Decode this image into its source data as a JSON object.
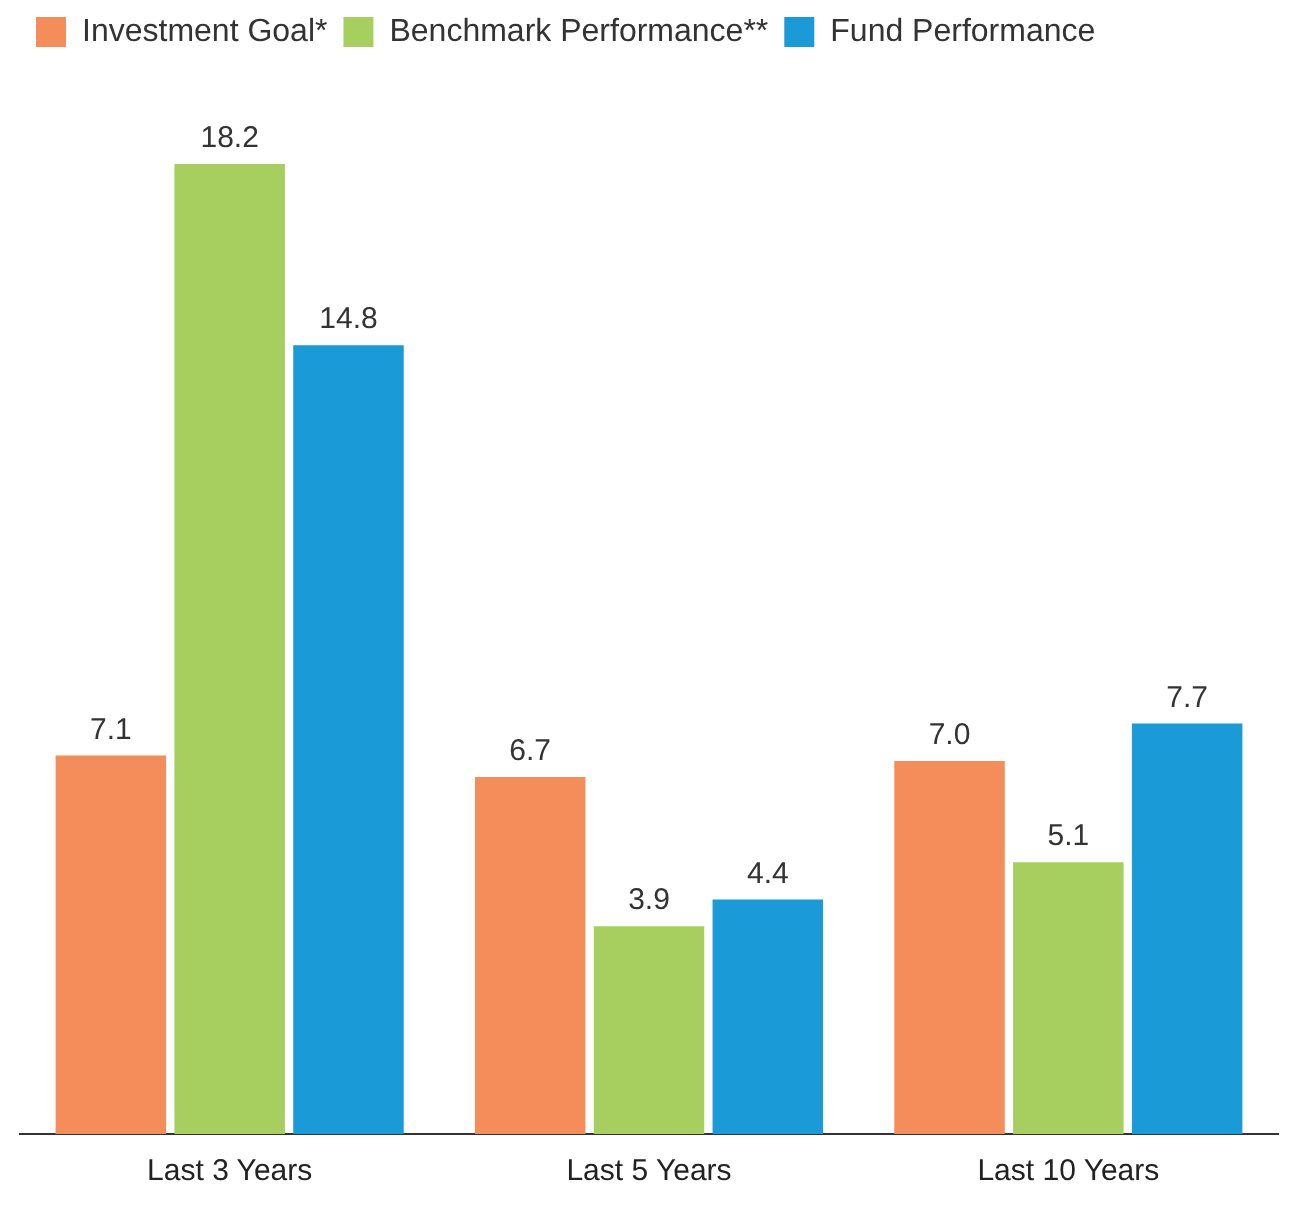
{
  "chart_data": {
    "type": "bar",
    "categories": [
      "Last 3 Years",
      "Last 5 Years",
      "Last 10 Years"
    ],
    "series": [
      {
        "name": "Investment Goal*",
        "color": "#f58d5a",
        "values": [
          7.1,
          6.7,
          7.0
        ],
        "value_labels": [
          "7.1",
          "6.7",
          "7.0"
        ]
      },
      {
        "name": "Benchmark Performance**",
        "color": "#a6cf5f",
        "values": [
          18.2,
          3.9,
          5.1
        ],
        "value_labels": [
          "18.2",
          "3.9",
          "5.1"
        ]
      },
      {
        "name": "Fund Performance",
        "color": "#1a9ad6",
        "values": [
          14.8,
          4.4,
          7.7
        ],
        "value_labels": [
          "14.8",
          "4.4",
          "7.7"
        ]
      }
    ],
    "legend": "top left",
    "grid": false
  }
}
